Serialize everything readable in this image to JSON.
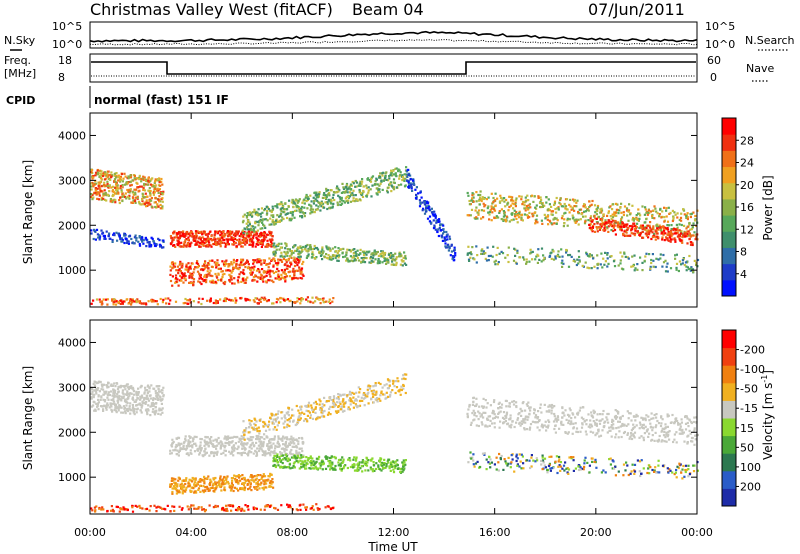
{
  "header": {
    "site": "Christmas Valley West (fitACF)",
    "beam": "Beam 04",
    "date": "07/Jun/2011"
  },
  "top_panels": {
    "nsky_label": "N.Sky",
    "nsearch_label": "N.Search",
    "noise_ticks": [
      "10^5",
      "10^0"
    ],
    "freq_label_1": "Freq.",
    "freq_label_2": "[MHz]",
    "freq_ticks": [
      "18",
      "8"
    ],
    "nave_label": "Nave",
    "nave_ticks": [
      "60",
      "0"
    ],
    "cpid_label": "CPID",
    "cpid_value": "normal (fast) 151 IF"
  },
  "chart_data": [
    {
      "type": "heatmap",
      "name": "power-panel",
      "ylabel": "Slant Range [km]",
      "ylim": [
        180,
        4500
      ],
      "y_ticks": [
        1000,
        2000,
        3000,
        4000
      ],
      "colorbar": {
        "label": "Power [dB]",
        "ticks": [
          4,
          8,
          12,
          16,
          20,
          24,
          28
        ],
        "colors": [
          "#0010ff",
          "#1e3cc8",
          "#2f6ea8",
          "#3f8f6c",
          "#57a85a",
          "#8ab048",
          "#c8c040",
          "#f0a020",
          "#f07018",
          "#f03010",
          "#ff0000"
        ]
      }
    },
    {
      "type": "heatmap",
      "name": "velocity-panel",
      "ylabel": "Slant Range [km]",
      "ylim": [
        180,
        4500
      ],
      "y_ticks": [
        1000,
        2000,
        3000,
        4000
      ],
      "xlabel": "Time UT",
      "x_ticks": [
        "00:00",
        "04:00",
        "08:00",
        "12:00",
        "16:00",
        "20:00",
        "00:00"
      ],
      "colorbar": {
        "label": "Velocity [m s",
        "label_sup": "-1",
        "label_end": "]",
        "ticks": [
          "200",
          "100",
          "50",
          "15",
          "-15",
          "-50",
          "-100",
          "-200"
        ],
        "colors": [
          "#1e2ca8",
          "#2a5cc8",
          "#2c7850",
          "#4aa838",
          "#8ad830",
          "#c8c8c0",
          "#f0b020",
          "#f08010",
          "#f04010",
          "#ff0000"
        ]
      }
    }
  ]
}
